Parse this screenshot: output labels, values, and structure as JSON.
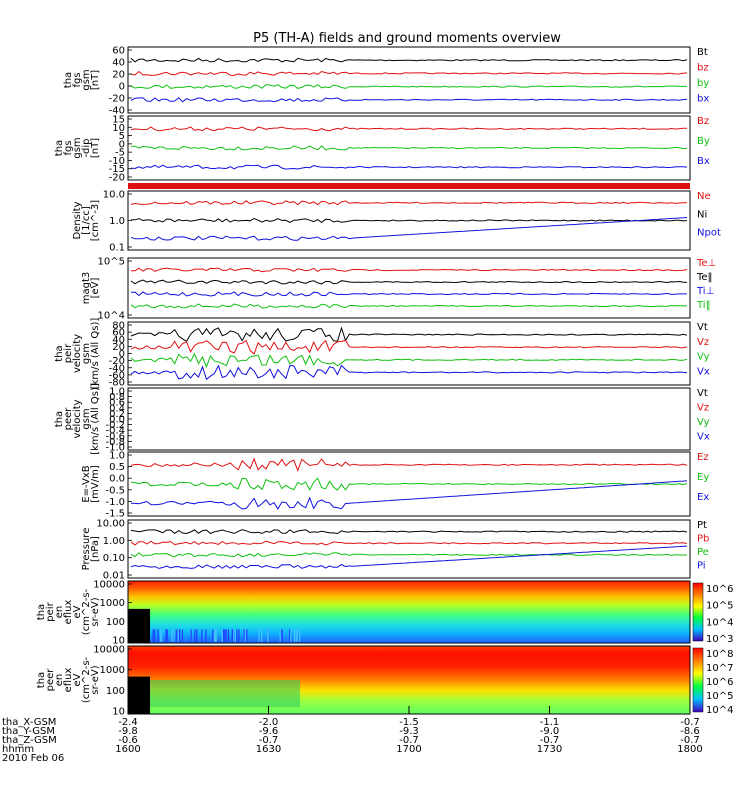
{
  "title": "P5 (TH-A) fields and ground moments overview",
  "colors": {
    "black": "#000000",
    "red": "#e01010",
    "green": "#10c010",
    "blue": "#1010e0"
  },
  "chart_data": [
    {
      "id": "fgs_gsm",
      "type": "line",
      "ylabel": [
        "tha",
        "fgs",
        "gsm",
        "[nT]"
      ],
      "yticks": [
        "60",
        "40",
        "20",
        "0",
        "-20",
        "-40"
      ],
      "series": [
        {
          "name": "Bt",
          "color": "black"
        },
        {
          "name": "bz",
          "color": "red"
        },
        {
          "name": "by",
          "color": "green"
        },
        {
          "name": "bx",
          "color": "blue"
        }
      ]
    },
    {
      "id": "fgs_dsl",
      "type": "line",
      "ylabel": [
        "tha",
        "fgs",
        "gsm",
        "-dip",
        "[nT]"
      ],
      "yticks": [
        "15",
        "10",
        "5",
        "0",
        "-5",
        "-10",
        "-15",
        "-20"
      ],
      "series": [
        {
          "name": "Bz",
          "color": "red"
        },
        {
          "name": "By",
          "color": "green"
        },
        {
          "name": "Bx",
          "color": "blue"
        }
      ]
    },
    {
      "id": "density",
      "type": "line",
      "scale": "log",
      "ylabel": [
        "Density",
        "[1/cc]",
        "[cm^-3]"
      ],
      "yticks": [
        "10.0",
        "1.0",
        "0.1"
      ],
      "series": [
        {
          "name": "Ne",
          "color": "red"
        },
        {
          "name": "Ni",
          "color": "black"
        },
        {
          "name": "Npot",
          "color": "blue"
        }
      ]
    },
    {
      "id": "temp",
      "type": "line",
      "scale": "log",
      "ylabel": [
        "magt3",
        "[eV]"
      ],
      "yticks": [
        "10^5",
        "10^4"
      ],
      "series": [
        {
          "name": "Te⊥",
          "color": "red"
        },
        {
          "name": "Te‖",
          "color": "black"
        },
        {
          "name": "Ti⊥",
          "color": "blue"
        },
        {
          "name": "Ti‖",
          "color": "green"
        }
      ]
    },
    {
      "id": "peir_vel",
      "type": "line",
      "ylabel": [
        "tha",
        "peir",
        "velocity",
        "gsm",
        "[km/s (All Qs)]"
      ],
      "yticks": [
        "80",
        "60",
        "40",
        "20",
        "0",
        "-20",
        "-40",
        "-60",
        "-80"
      ],
      "series": [
        {
          "name": "Vt",
          "color": "black"
        },
        {
          "name": "Vz",
          "color": "red"
        },
        {
          "name": "Vy",
          "color": "green"
        },
        {
          "name": "Vx",
          "color": "blue"
        }
      ]
    },
    {
      "id": "peer_vel",
      "type": "line",
      "ylabel": [
        "tha",
        "peer",
        "velocity",
        "gsm",
        "[km/s (All Qs)]"
      ],
      "yticks": [
        "1.0",
        "0.8",
        "0.6",
        "0.4",
        "0.2",
        "0.0",
        "-0.2",
        "-0.4",
        "-0.6",
        "-0.8",
        "-1.0"
      ],
      "series": [
        {
          "name": "Vt",
          "color": "black"
        },
        {
          "name": "Vz",
          "color": "red"
        },
        {
          "name": "Vy",
          "color": "green"
        },
        {
          "name": "Vx",
          "color": "blue"
        }
      ]
    },
    {
      "id": "efield",
      "type": "line",
      "ylabel": [
        "E=-VxB",
        "[mV/m]"
      ],
      "yticks": [
        "1.0",
        "0.5",
        "0.0",
        "-0.5",
        "-1.0",
        "-1.5"
      ],
      "series": [
        {
          "name": "Ez",
          "color": "red"
        },
        {
          "name": "Ey",
          "color": "green"
        },
        {
          "name": "Ex",
          "color": "blue"
        }
      ]
    },
    {
      "id": "pressure",
      "type": "line",
      "scale": "log",
      "ylabel": [
        "Pressure",
        "[nPa]"
      ],
      "yticks": [
        "10.00",
        "1.00",
        "0.10",
        "0.01"
      ],
      "series": [
        {
          "name": "Pt",
          "color": "black"
        },
        {
          "name": "Pb",
          "color": "red"
        },
        {
          "name": "Pe",
          "color": "green"
        },
        {
          "name": "Pi",
          "color": "blue"
        }
      ]
    },
    {
      "id": "peir_spec",
      "type": "heatmap",
      "ylabel": [
        "tha",
        "peir",
        "en",
        "eflux",
        "eV",
        "(cm^2-s-",
        "sr-eV)"
      ],
      "yticks": [
        "10000",
        "1000",
        "100",
        "10"
      ],
      "colorbar": [
        "10^6",
        "10^5",
        "10^4",
        "10^3"
      ]
    },
    {
      "id": "peer_spec",
      "type": "heatmap",
      "ylabel": [
        "tha",
        "peer",
        "en",
        "eflux",
        "eV",
        "(cm^2-s-",
        "sr-eV)"
      ],
      "yticks": [
        "10000",
        "1000",
        "100",
        "10"
      ],
      "colorbar": [
        "10^8",
        "10^7",
        "10^6",
        "10^5",
        "10^4"
      ]
    }
  ],
  "xaxis": {
    "rows": [
      {
        "label": "tha_X-GSM",
        "values": [
          "-2.4",
          "-2.0",
          "-1.5",
          "-1.1",
          "-0.7"
        ]
      },
      {
        "label": "tha_Y-GSM",
        "values": [
          "-9.8",
          "-9.6",
          "-9.3",
          "-9.0",
          "-8.6"
        ]
      },
      {
        "label": "tha_Z-GSM",
        "values": [
          "-0.6",
          "-0.7",
          "-0.7",
          "-0.7",
          "-0.7"
        ]
      },
      {
        "label": "hhmm",
        "values": [
          "1600",
          "1630",
          "1700",
          "1730",
          "1800"
        ]
      }
    ],
    "date": "2010 Feb 06"
  }
}
